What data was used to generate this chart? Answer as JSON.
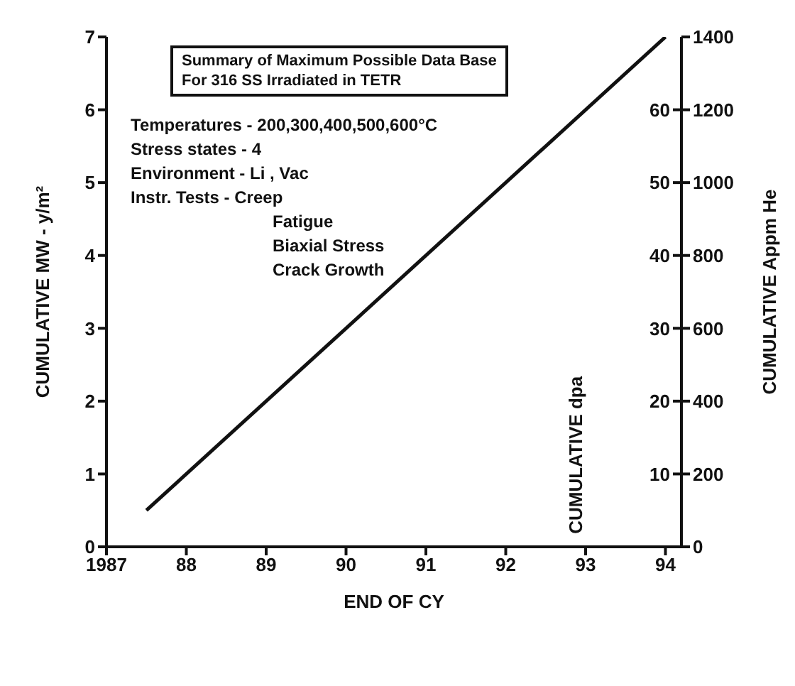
{
  "chart_data": {
    "type": "line",
    "title": "Summary of Maximum Possible Data Base For 316 SS Irradiated in TETR",
    "xlabel": "END OF CY",
    "ylabel": "CUMULATIVE MW - y/m²",
    "y2label": "CUMULATIVE dpa",
    "y3label": "CUMULATIVE Appm He",
    "annotations": [
      "Temperatures - 200,300,400,500,600°C",
      "Stress states - 4",
      "Environment - Li , Vac",
      "Instr. Tests - Creep",
      "Fatigue",
      "Biaxial Stress",
      "Crack Growth"
    ],
    "x": [
      1987.5,
      1994
    ],
    "series": [
      {
        "color": "#111111",
        "values": [
          0.5,
          7
        ],
        "axis": "y"
      }
    ],
    "xlim": [
      1987,
      1994.2
    ],
    "xticks": [
      1987,
      {
        "value": 1988,
        "label": "88"
      },
      {
        "value": 1989,
        "label": "89"
      },
      {
        "value": 1990,
        "label": "90"
      },
      {
        "value": 1991,
        "label": "91"
      },
      {
        "value": 1992,
        "label": "92"
      },
      {
        "value": 1993,
        "label": "93"
      },
      {
        "value": 1994,
        "label": "94"
      }
    ],
    "ylim": [
      0,
      7
    ],
    "yticks": [
      0,
      1,
      2,
      3,
      4,
      5,
      6,
      7
    ],
    "y2lim": [
      0,
      70
    ],
    "y2ticks": [
      10,
      20,
      30,
      40,
      50,
      60
    ],
    "y3lim": [
      0,
      1400
    ],
    "y3ticks": [
      0,
      200,
      400,
      600,
      800,
      1000,
      1200,
      1400
    ],
    "marker": "none",
    "line_style": "solid"
  }
}
